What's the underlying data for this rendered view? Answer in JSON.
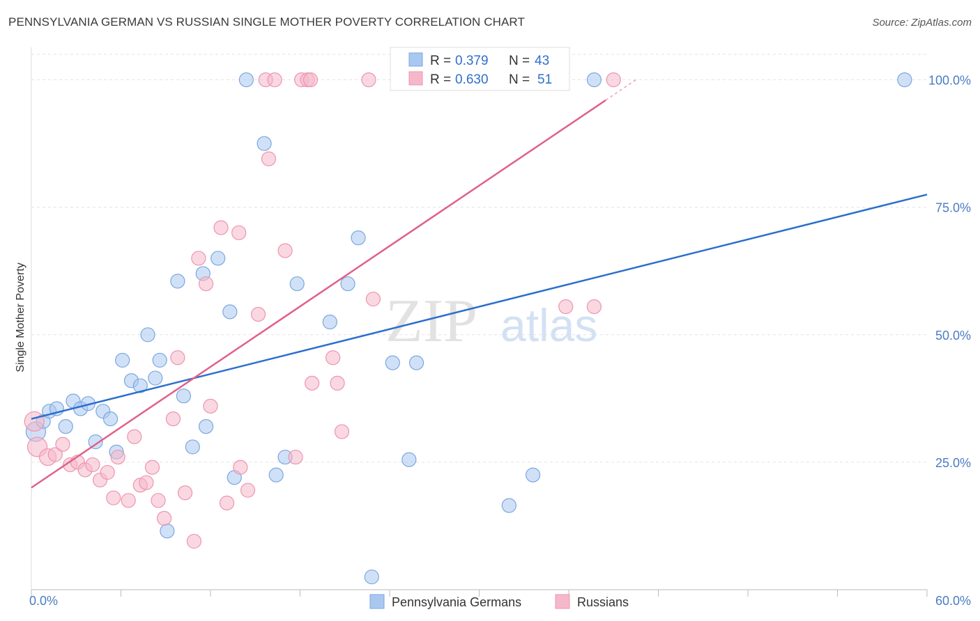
{
  "title": "PENNSYLVANIA GERMAN VS RUSSIAN SINGLE MOTHER POVERTY CORRELATION CHART",
  "source": "Source: ZipAtlas.com",
  "watermark": {
    "zip": "ZIP",
    "atlas": "atlas"
  },
  "legend": {
    "r_label": "R =",
    "n_label": "N =",
    "rows": [
      {
        "r": "0.379",
        "n": "43"
      },
      {
        "r": "0.630",
        "n": "51"
      }
    ]
  },
  "chart_data": {
    "type": "scatter",
    "title": "PENNSYLVANIA GERMAN VS RUSSIAN SINGLE MOTHER POVERTY CORRELATION CHART",
    "xlabel": "",
    "ylabel": "Single Mother Poverty",
    "xlim": [
      0,
      60
    ],
    "ylim": [
      0,
      105
    ],
    "x_tick_labels": [
      "0.0%",
      "60.0%"
    ],
    "y_ticks": [
      25,
      50,
      75,
      100
    ],
    "y_tick_labels": [
      "25.0%",
      "50.0%",
      "75.0%",
      "100.0%"
    ],
    "grid": true,
    "legend_position": "top-center",
    "series": [
      {
        "name": "Pennsylvania Germans",
        "color": "#a9c8f0",
        "edge": "#7aa6e0",
        "line_color": "#2b6fce",
        "r": 0.379,
        "n": 43,
        "trend": {
          "x": [
            0,
            60
          ],
          "y": [
            33.5,
            77.5
          ]
        },
        "points": [
          {
            "x": 0.3,
            "y": 31,
            "s": 14
          },
          {
            "x": 0.8,
            "y": 33,
            "s": 10
          },
          {
            "x": 1.2,
            "y": 35,
            "s": 10
          },
          {
            "x": 1.7,
            "y": 35.5,
            "s": 10
          },
          {
            "x": 2.3,
            "y": 32,
            "s": 10
          },
          {
            "x": 2.8,
            "y": 37,
            "s": 10
          },
          {
            "x": 3.3,
            "y": 35.5,
            "s": 10
          },
          {
            "x": 3.8,
            "y": 36.5,
            "s": 10
          },
          {
            "x": 4.3,
            "y": 29,
            "s": 10
          },
          {
            "x": 4.8,
            "y": 35,
            "s": 10
          },
          {
            "x": 5.3,
            "y": 33.5,
            "s": 10
          },
          {
            "x": 5.7,
            "y": 27,
            "s": 10
          },
          {
            "x": 6.1,
            "y": 45,
            "s": 10
          },
          {
            "x": 6.7,
            "y": 41,
            "s": 10
          },
          {
            "x": 7.3,
            "y": 40,
            "s": 10
          },
          {
            "x": 7.8,
            "y": 50,
            "s": 10
          },
          {
            "x": 8.3,
            "y": 41.5,
            "s": 10
          },
          {
            "x": 8.6,
            "y": 45,
            "s": 10
          },
          {
            "x": 9.1,
            "y": 11.5,
            "s": 10
          },
          {
            "x": 9.8,
            "y": 60.5,
            "s": 10
          },
          {
            "x": 10.2,
            "y": 38,
            "s": 10
          },
          {
            "x": 10.8,
            "y": 28,
            "s": 10
          },
          {
            "x": 11.5,
            "y": 62,
            "s": 10
          },
          {
            "x": 11.7,
            "y": 32,
            "s": 10
          },
          {
            "x": 12.5,
            "y": 65,
            "s": 10
          },
          {
            "x": 13.3,
            "y": 54.5,
            "s": 10
          },
          {
            "x": 13.6,
            "y": 22,
            "s": 10
          },
          {
            "x": 14.4,
            "y": 100,
            "s": 10
          },
          {
            "x": 15.6,
            "y": 87.5,
            "s": 10
          },
          {
            "x": 16.4,
            "y": 22.5,
            "s": 10
          },
          {
            "x": 17.0,
            "y": 26,
            "s": 10
          },
          {
            "x": 17.8,
            "y": 60,
            "s": 10
          },
          {
            "x": 20.0,
            "y": 52.5,
            "s": 10
          },
          {
            "x": 21.2,
            "y": 60,
            "s": 10
          },
          {
            "x": 21.9,
            "y": 69,
            "s": 10
          },
          {
            "x": 22.8,
            "y": 2.5,
            "s": 10
          },
          {
            "x": 24.2,
            "y": 44.5,
            "s": 10
          },
          {
            "x": 25.3,
            "y": 25.5,
            "s": 10
          },
          {
            "x": 25.8,
            "y": 44.5,
            "s": 10
          },
          {
            "x": 32.0,
            "y": 16.5,
            "s": 10
          },
          {
            "x": 33.6,
            "y": 22.5,
            "s": 10
          },
          {
            "x": 37.7,
            "y": 100,
            "s": 10
          },
          {
            "x": 58.5,
            "y": 100,
            "s": 10
          }
        ]
      },
      {
        "name": "Russians",
        "color": "#f5b8cb",
        "edge": "#ee93b0",
        "line_color": "#e0608a",
        "r": 0.63,
        "n": 51,
        "trend": {
          "x": [
            0,
            40.5
          ],
          "y": [
            20,
            100
          ]
        },
        "points": [
          {
            "x": 0.2,
            "y": 33,
            "s": 14
          },
          {
            "x": 0.4,
            "y": 28,
            "s": 14
          },
          {
            "x": 1.1,
            "y": 26,
            "s": 12
          },
          {
            "x": 1.6,
            "y": 26.5,
            "s": 10
          },
          {
            "x": 2.1,
            "y": 28.5,
            "s": 10
          },
          {
            "x": 2.6,
            "y": 24.5,
            "s": 10
          },
          {
            "x": 3.1,
            "y": 25,
            "s": 10
          },
          {
            "x": 3.6,
            "y": 23.5,
            "s": 10
          },
          {
            "x": 4.1,
            "y": 24.5,
            "s": 10
          },
          {
            "x": 4.6,
            "y": 21.5,
            "s": 10
          },
          {
            "x": 5.1,
            "y": 23,
            "s": 10
          },
          {
            "x": 5.5,
            "y": 18,
            "s": 10
          },
          {
            "x": 5.8,
            "y": 26,
            "s": 10
          },
          {
            "x": 6.5,
            "y": 17.5,
            "s": 10
          },
          {
            "x": 6.9,
            "y": 30,
            "s": 10
          },
          {
            "x": 7.3,
            "y": 20.5,
            "s": 10
          },
          {
            "x": 7.7,
            "y": 21,
            "s": 10
          },
          {
            "x": 8.1,
            "y": 24,
            "s": 10
          },
          {
            "x": 8.5,
            "y": 17.5,
            "s": 10
          },
          {
            "x": 8.9,
            "y": 14,
            "s": 10
          },
          {
            "x": 9.5,
            "y": 33.5,
            "s": 10
          },
          {
            "x": 9.8,
            "y": 45.5,
            "s": 10
          },
          {
            "x": 10.3,
            "y": 19,
            "s": 10
          },
          {
            "x": 10.9,
            "y": 9.5,
            "s": 10
          },
          {
            "x": 11.2,
            "y": 65,
            "s": 10
          },
          {
            "x": 11.7,
            "y": 60,
            "s": 10
          },
          {
            "x": 12.0,
            "y": 36,
            "s": 10
          },
          {
            "x": 12.7,
            "y": 71,
            "s": 10
          },
          {
            "x": 13.1,
            "y": 17,
            "s": 10
          },
          {
            "x": 13.9,
            "y": 70,
            "s": 10
          },
          {
            "x": 14.0,
            "y": 24,
            "s": 10
          },
          {
            "x": 14.5,
            "y": 19.5,
            "s": 10
          },
          {
            "x": 15.2,
            "y": 54,
            "s": 10
          },
          {
            "x": 15.7,
            "y": 100,
            "s": 10
          },
          {
            "x": 15.9,
            "y": 84.5,
            "s": 10
          },
          {
            "x": 16.3,
            "y": 100,
            "s": 10
          },
          {
            "x": 17.0,
            "y": 66.5,
            "s": 10
          },
          {
            "x": 17.7,
            "y": 26,
            "s": 10
          },
          {
            "x": 18.1,
            "y": 100,
            "s": 10
          },
          {
            "x": 18.5,
            "y": 100,
            "s": 10
          },
          {
            "x": 18.7,
            "y": 100,
            "s": 10
          },
          {
            "x": 18.8,
            "y": 40.5,
            "s": 10
          },
          {
            "x": 20.2,
            "y": 45.5,
            "s": 10
          },
          {
            "x": 20.5,
            "y": 40.5,
            "s": 10
          },
          {
            "x": 20.8,
            "y": 31,
            "s": 10
          },
          {
            "x": 22.6,
            "y": 100,
            "s": 10
          },
          {
            "x": 22.9,
            "y": 57,
            "s": 10
          },
          {
            "x": 35.4,
            "y": 100,
            "s": 10
          },
          {
            "x": 35.8,
            "y": 55.5,
            "s": 10
          },
          {
            "x": 37.7,
            "y": 55.5,
            "s": 10
          },
          {
            "x": 39.0,
            "y": 100,
            "s": 10
          }
        ]
      }
    ]
  }
}
